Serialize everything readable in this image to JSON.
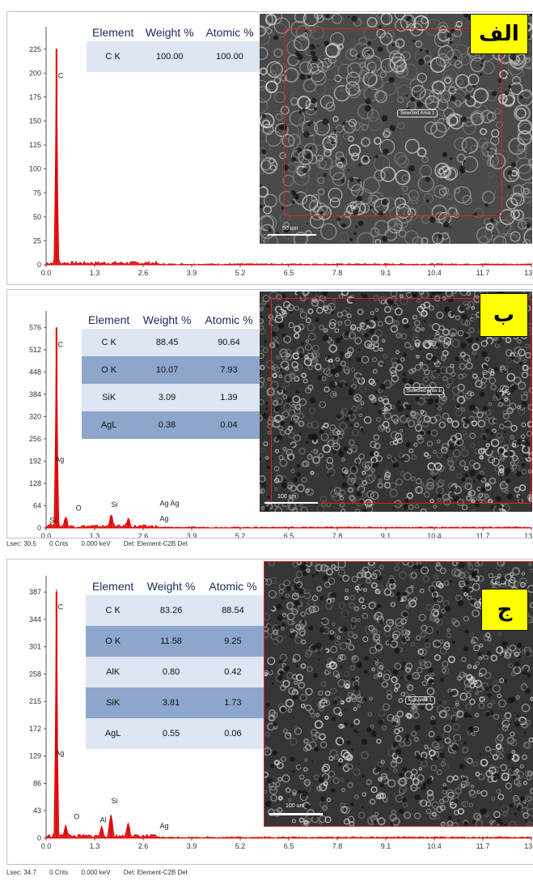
{
  "panels": [
    {
      "label": "الف",
      "area_label": "Selected Area 1",
      "scale_label": "50 um",
      "table": {
        "headers": [
          "Element",
          "Weight %",
          "Atomic %"
        ],
        "rows": [
          [
            "C K",
            "100.00",
            "100.00"
          ]
        ]
      },
      "footer": null
    },
    {
      "label": "ب",
      "area_label": "Selected Area 1",
      "scale_label": "100 um",
      "table": {
        "headers": [
          "Element",
          "Weight %",
          "Atomic %"
        ],
        "rows": [
          [
            "C K",
            "88.45",
            "90.64"
          ],
          [
            "O K",
            "10.07",
            "7.93"
          ],
          [
            "SiK",
            "3.09",
            "1.39"
          ],
          [
            "AgL",
            "0.38",
            "0.04"
          ]
        ]
      },
      "footer": {
        "lsec": "Lsec: 30.5",
        "cnts": "0 Cnts",
        "kev": "0.000 keV",
        "det": "Det: Element-C2B Det"
      }
    },
    {
      "label": "ج",
      "area_label": "Full Area 1",
      "scale_label": "100 um",
      "table": {
        "headers": [
          "Element",
          "Weight %",
          "Atomic %"
        ],
        "rows": [
          [
            "C K",
            "83.26",
            "88.54"
          ],
          [
            "O K",
            "11.58",
            "9.25"
          ],
          [
            "AlK",
            "0.80",
            "0.42"
          ],
          [
            "SiK",
            "3.81",
            "1.73"
          ],
          [
            "AgL",
            "0.55",
            "0.06"
          ]
        ]
      },
      "footer": {
        "lsec": "Lsec: 34.7",
        "cnts": "0 Cnts",
        "kev": "0.000 keV",
        "det": "Det: Element-C2B Det"
      }
    }
  ],
  "chart_data": [
    {
      "type": "line",
      "xlabel": "",
      "ylabel": "",
      "x_ticks": [
        "0.0",
        "1.3",
        "2.6",
        "3.9",
        "5.2",
        "6.5",
        "7.8",
        "9.1",
        "10.4",
        "11.7",
        "13.0"
      ],
      "y_ticks": [
        "0",
        "25",
        "50",
        "75",
        "100",
        "125",
        "150",
        "175",
        "200",
        "225"
      ],
      "xlim": [
        0,
        13.0
      ],
      "ylim": [
        0,
        240
      ],
      "color": "#e00000",
      "peaks": [
        {
          "x": 0.277,
          "y": 225,
          "label": "C"
        }
      ],
      "annotations": [
        {
          "x": 0.277,
          "y": 195,
          "text": "C"
        }
      ]
    },
    {
      "type": "line",
      "xlabel": "",
      "ylabel": "",
      "x_ticks": [
        "0.0",
        "1.3",
        "2.6",
        "3.9",
        "5.2",
        "6.5",
        "7.8",
        "9.1",
        "10.4",
        "11.7",
        "13.0"
      ],
      "y_ticks": [
        "0",
        "64",
        "128",
        "192",
        "256",
        "320",
        "384",
        "448",
        "512",
        "576"
      ],
      "xlim": [
        0,
        13.0
      ],
      "ylim": [
        0,
        600
      ],
      "color": "#e00000",
      "peaks": [
        {
          "x": 0.277,
          "y": 576,
          "label": "C"
        },
        {
          "x": 0.525,
          "y": 28,
          "label": "O"
        },
        {
          "x": 1.74,
          "y": 34,
          "label": "Si"
        },
        {
          "x": 2.2,
          "y": 22,
          "label": "Ag"
        },
        {
          "x": 0.1,
          "y": 8,
          "label": "Si"
        }
      ],
      "annotations": [
        {
          "x": 0.27,
          "y": 520,
          "text": "C"
        },
        {
          "x": 0.2,
          "y": 190,
          "text": "Ag"
        },
        {
          "x": 0.75,
          "y": 50,
          "text": "O"
        },
        {
          "x": 1.7,
          "y": 60,
          "text": "Si"
        },
        {
          "x": 3.0,
          "y": 64,
          "text": "Ag Ag"
        },
        {
          "x": 3.0,
          "y": 20,
          "text": "Ag"
        },
        {
          "x": 0.05,
          "y": 15,
          "text": "Si"
        }
      ]
    },
    {
      "type": "line",
      "xlabel": "",
      "ylabel": "",
      "x_ticks": [
        "0.0",
        "1.3",
        "2.6",
        "3.9",
        "5.2",
        "6.5",
        "7.8",
        "9.1",
        "10.4",
        "11.7",
        "13.0"
      ],
      "y_ticks": [
        "0",
        "43",
        "86",
        "129",
        "172",
        "215",
        "258",
        "301",
        "344",
        "387"
      ],
      "xlim": [
        0,
        13.0
      ],
      "ylim": [
        0,
        400
      ],
      "color": "#e00000",
      "peaks": [
        {
          "x": 0.277,
          "y": 387,
          "label": "C"
        },
        {
          "x": 0.525,
          "y": 18,
          "label": "O"
        },
        {
          "x": 1.49,
          "y": 14,
          "label": "Al"
        },
        {
          "x": 1.74,
          "y": 34,
          "label": "Si"
        },
        {
          "x": 2.2,
          "y": 22,
          "label": "Ag"
        }
      ],
      "annotations": [
        {
          "x": 0.27,
          "y": 360,
          "text": "C"
        },
        {
          "x": 0.2,
          "y": 130,
          "text": "Ag"
        },
        {
          "x": 0.7,
          "y": 30,
          "text": "O"
        },
        {
          "x": 1.4,
          "y": 25,
          "text": "Al"
        },
        {
          "x": 1.7,
          "y": 55,
          "text": "Si"
        },
        {
          "x": 3.0,
          "y": 15,
          "text": "Ag"
        }
      ]
    }
  ]
}
